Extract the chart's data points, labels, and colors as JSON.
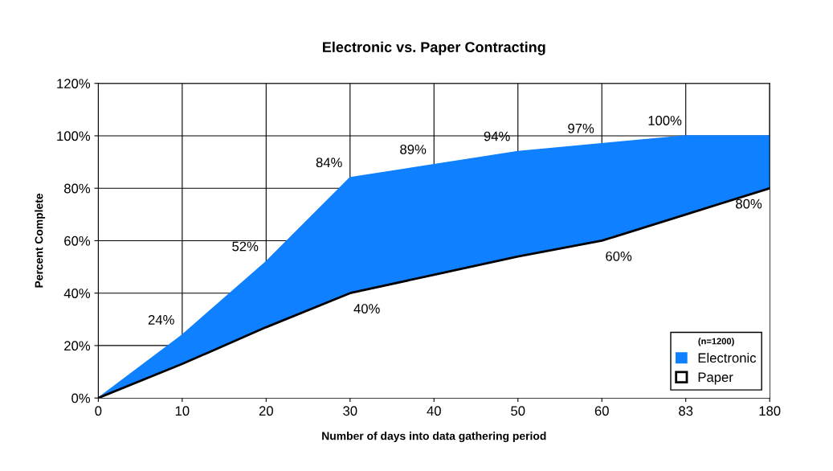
{
  "chart_data": {
    "type": "area",
    "title": "Electronic vs. Paper Contracting",
    "xlabel": "Number of days into data gathering period",
    "ylabel": "Percent Complete",
    "categories": [
      "0",
      "10",
      "20",
      "30",
      "40",
      "50",
      "60",
      "83",
      "180"
    ],
    "series": [
      {
        "name": "Electronic",
        "color": "#0f80ff",
        "values": [
          0,
          24,
          52,
          84,
          89,
          94,
          97,
          100,
          100
        ],
        "value_labels": [
          null,
          "24%",
          "52%",
          "84%",
          "89%",
          "94%",
          "97%",
          "100%",
          null
        ]
      },
      {
        "name": "Paper",
        "color": "#000000",
        "values": [
          0,
          13,
          27,
          40,
          47,
          54,
          60,
          70,
          80
        ],
        "value_labels": [
          null,
          null,
          null,
          "40%",
          null,
          null,
          "60%",
          null,
          "80%"
        ]
      }
    ],
    "ylim": [
      0,
      120
    ],
    "yticks": [
      {
        "value": 0,
        "label": "0%"
      },
      {
        "value": 20,
        "label": "20%"
      },
      {
        "value": 40,
        "label": "40%"
      },
      {
        "value": 60,
        "label": "60%"
      },
      {
        "value": 80,
        "label": "80%"
      },
      {
        "value": 100,
        "label": "100%"
      },
      {
        "value": 120,
        "label": "120%"
      }
    ],
    "grid": true,
    "legend": "bottom right",
    "legend_title": "(n=1200)"
  }
}
